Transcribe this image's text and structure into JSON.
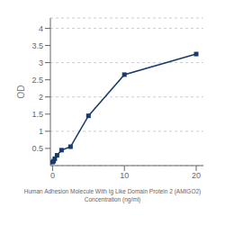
{
  "chart_data": {
    "type": "line",
    "x": [
      0,
      0.156,
      0.313,
      0.625,
      1.25,
      2.5,
      5,
      10,
      20
    ],
    "values": [
      0.1,
      0.13,
      0.2,
      0.3,
      0.45,
      0.55,
      1.45,
      2.65,
      3.25
    ],
    "color": "#1a3a6b",
    "marker": "square",
    "xlabel": "Human Adhesion Molecule With Ig Like Domain Protein 2 (AMIGO2)\nConcentration (ng/ml)",
    "ylabel": "OD",
    "xlim": [
      -0.3,
      21
    ],
    "ylim": [
      0,
      4.3
    ],
    "xticks": [
      0,
      10,
      20
    ],
    "yticks": [
      0.5,
      1,
      1.5,
      2,
      2.5,
      3,
      3.5,
      4
    ],
    "grid": true
  }
}
